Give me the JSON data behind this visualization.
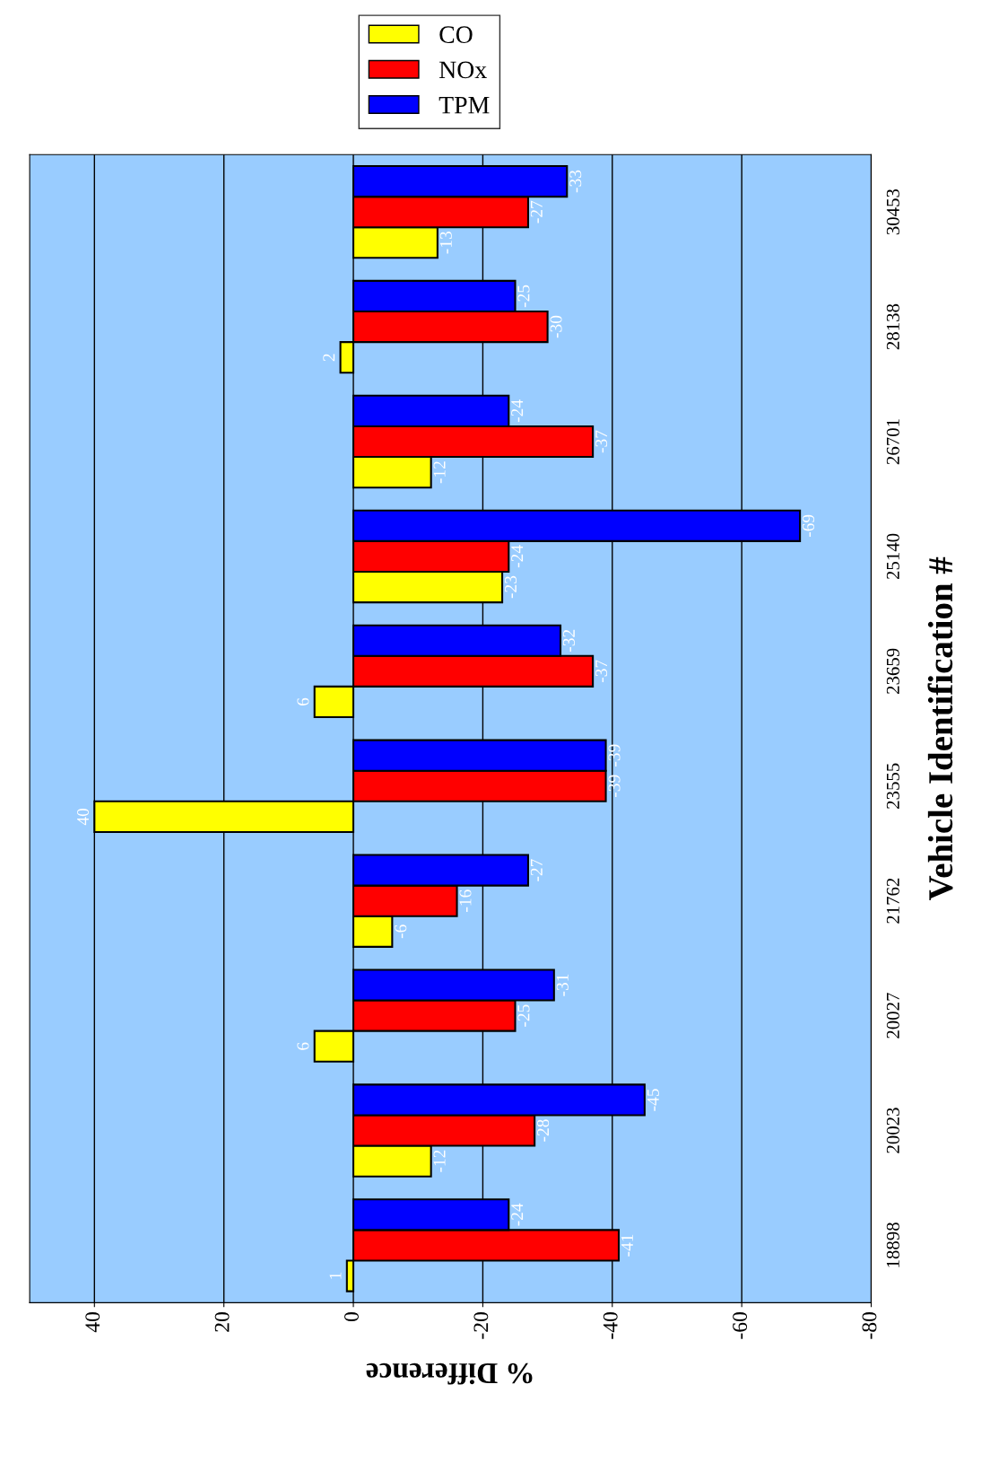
{
  "chart_data": {
    "type": "bar",
    "orientation": "horizontal",
    "xlabel": "% Difference",
    "ylabel": "Vehicle Identification #",
    "categories": [
      "30453",
      "28138",
      "26701",
      "25140",
      "23659",
      "23555",
      "21762",
      "20027",
      "20023",
      "18898"
    ],
    "series": [
      {
        "name": "CO",
        "color": "#ffff00",
        "values": [
          -13,
          2,
          -12,
          -23,
          6,
          40,
          -6,
          6,
          -12,
          1
        ]
      },
      {
        "name": "NOx",
        "color": "#ff0000",
        "values": [
          -27,
          -30,
          -37,
          -24,
          -37,
          -39,
          -16,
          -25,
          -28,
          -41
        ]
      },
      {
        "name": "TPM",
        "color": "#0000ff",
        "values": [
          -33,
          -25,
          -24,
          -69,
          -32,
          -39,
          -27,
          -31,
          -45,
          -24
        ]
      }
    ],
    "xlim": [
      50,
      -80
    ],
    "xticks": [
      40,
      20,
      0,
      -20,
      -40,
      -60,
      -80
    ],
    "grid": "x",
    "legend": "top right",
    "data_labels": true
  }
}
